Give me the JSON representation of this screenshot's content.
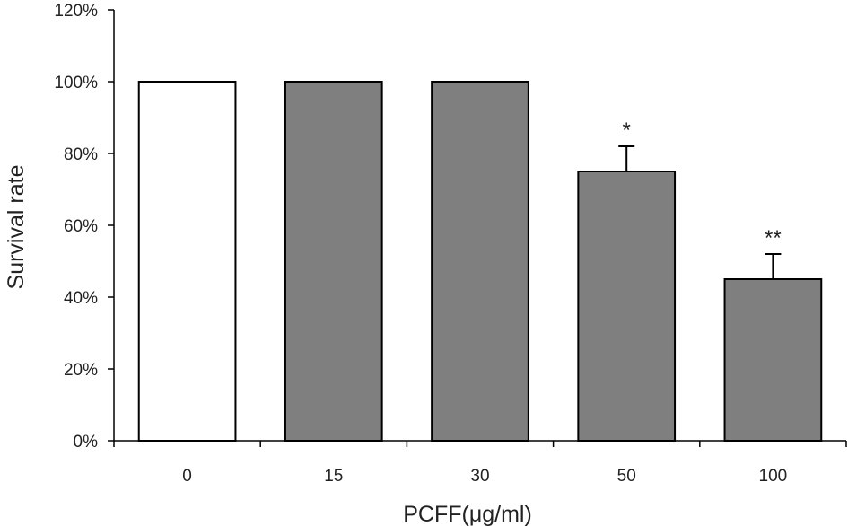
{
  "chart_data": {
    "type": "bar",
    "title": "",
    "xlabel": "PCFF(μg/ml)",
    "ylabel": "Survival rate",
    "categories": [
      "0",
      "15",
      "30",
      "50",
      "100"
    ],
    "values": [
      100,
      100,
      100,
      75,
      45
    ],
    "error_bars": [
      0,
      0,
      0,
      7,
      7
    ],
    "annotations": [
      "",
      "",
      "",
      "*",
      "**"
    ],
    "bar_colors": [
      "#ffffff",
      "#7f7f7f",
      "#7f7f7f",
      "#7f7f7f",
      "#7f7f7f"
    ],
    "bar_edge_color": "#000000",
    "ylim": [
      0,
      120
    ],
    "yticks": [
      0,
      20,
      40,
      60,
      80,
      100,
      120
    ],
    "ytick_labels": [
      "0%",
      "20%",
      "40%",
      "60%",
      "80%",
      "100%",
      "120%"
    ],
    "grid": false,
    "legend": "none"
  }
}
